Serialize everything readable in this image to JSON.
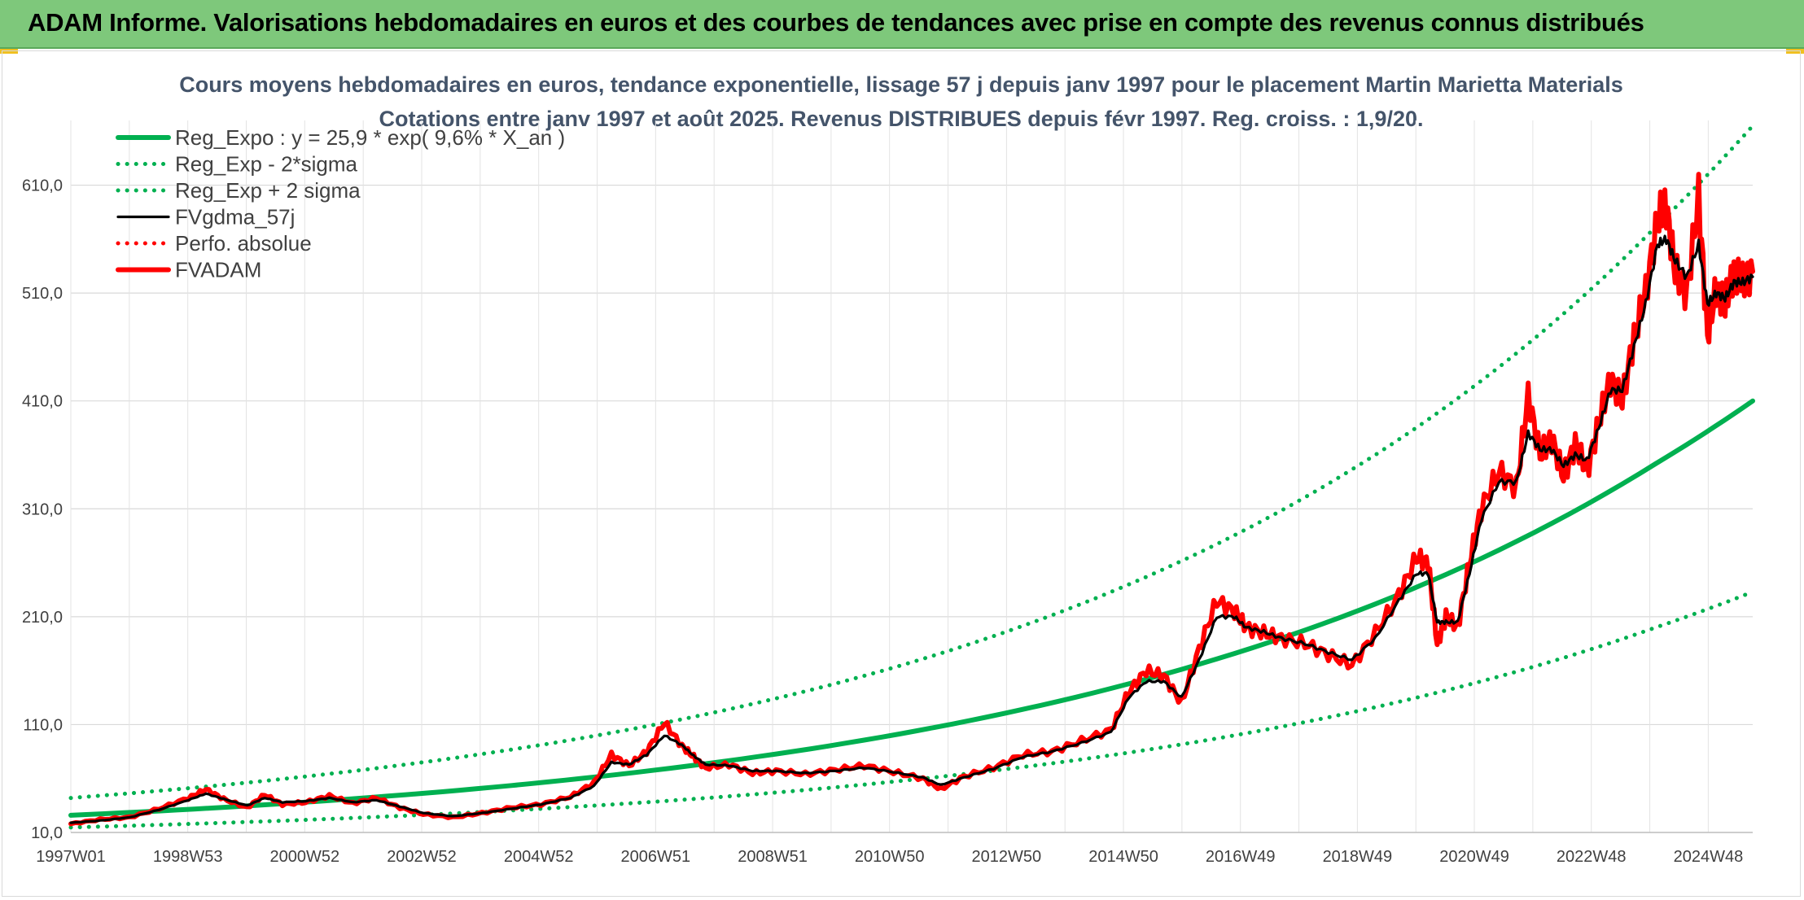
{
  "header": {
    "title": "ADAM Informe. Valorisations hebdomadaires en euros et des courbes de tendances avec prise en compte des revenus connus distribués"
  },
  "colors": {
    "header_bg": "#7ec87b",
    "trend_green": "#00b050",
    "smooth_black": "#000000",
    "price_red": "#ff0000",
    "title_text": "#44546a"
  },
  "chart_data": {
    "type": "line",
    "title": "Cours moyens hebdomadaires en euros, tendance exponentielle, lissage 57 j depuis janv 1997 pour le placement Martin Marietta Materials",
    "subtitle": "Cotations entre janv 1997 et août 2025. Revenus DISTRIBUES depuis févr 1997. Reg. croiss. : 1,9/20.",
    "x_tick_labels": [
      "1997W01",
      "1998W53",
      "2000W52",
      "2002W52",
      "2004W52",
      "2006W51",
      "2008W51",
      "2010W50",
      "2012W50",
      "2014W50",
      "2016W49",
      "2018W49",
      "2020W49",
      "2022W48",
      "2024W48"
    ],
    "x_range": [
      1997.0,
      2025.62
    ],
    "y_tick_labels": [
      "10,0",
      "110,0",
      "210,0",
      "310,0",
      "410,0",
      "510,0",
      "610,0"
    ],
    "ylim": [
      10,
      670
    ],
    "grid": true,
    "legend_position": "top-left",
    "legend": [
      {
        "label": "Reg_Expo : y = 25,9 * exp( 9,6% *  X_an )",
        "color": "#00b050",
        "style": "solid-thick"
      },
      {
        "label": "Reg_Exp - 2*sigma",
        "color": "#00b050",
        "style": "dotted"
      },
      {
        "label": "Reg_Exp + 2 sigma",
        "color": "#00b050",
        "style": "dotted"
      },
      {
        "label": "FVgdma_57j",
        "color": "#000000",
        "style": "solid"
      },
      {
        "label": "Perfo. absolue",
        "color": "#ff0000",
        "style": "dotted"
      },
      {
        "label": "FVADAM",
        "color": "#ff0000",
        "style": "solid-thick"
      }
    ],
    "series": [
      {
        "name": "Reg_Expo : y = 25,9 * exp( 9,6% *  X_an )",
        "x": [
          1997.0,
          2000.0,
          2003.0,
          2006.0,
          2009.0,
          2012.0,
          2015.0,
          2018.0,
          2021.0,
          2024.0,
          2025.62
        ],
        "values": [
          25.9,
          34.6,
          46.3,
          61.9,
          82.7,
          110.5,
          147.7,
          197.5,
          264.0,
          352.9,
          410.0
        ]
      },
      {
        "name": "Reg_Exp - 2*sigma",
        "x": [
          1997.0,
          2000.0,
          2003.0,
          2006.0,
          2009.0,
          2012.0,
          2015.0,
          2018.0,
          2021.0,
          2024.0,
          2025.62
        ],
        "values": [
          14.7,
          19.7,
          26.3,
          35.2,
          47.0,
          62.9,
          84.0,
          112.3,
          150.1,
          200.6,
          233.0
        ]
      },
      {
        "name": "Reg_Exp + 2 sigma",
        "x": [
          1997.0,
          2000.0,
          2003.0,
          2006.0,
          2009.0,
          2012.0,
          2015.0,
          2018.0,
          2021.0,
          2024.0,
          2025.62
        ],
        "values": [
          42.0,
          56.2,
          75.1,
          100.4,
          134.2,
          179.4,
          239.8,
          320.6,
          428.6,
          573.0,
          665.0
        ]
      },
      {
        "name": "FVADAM",
        "x": [
          1997.0,
          1997.5,
          1998.0,
          1998.5,
          1999.0,
          1999.3,
          1999.6,
          2000.0,
          2000.3,
          2000.6,
          2001.0,
          2001.4,
          2001.8,
          2002.2,
          2002.6,
          2003.0,
          2003.5,
          2004.0,
          2004.5,
          2005.0,
          2005.5,
          2005.9,
          2006.2,
          2006.5,
          2006.8,
          2007.1,
          2007.4,
          2007.6,
          2007.8,
          2008.2,
          2008.6,
          2009.0,
          2009.5,
          2010.0,
          2010.5,
          2011.0,
          2011.5,
          2011.8,
          2012.2,
          2012.7,
          2013.2,
          2013.7,
          2014.2,
          2014.7,
          2015.0,
          2015.3,
          2015.6,
          2015.9,
          2016.2,
          2016.5,
          2016.8,
          2017.0,
          2017.3,
          2017.6,
          2018.0,
          2018.4,
          2018.8,
          2019.2,
          2019.6,
          2019.9,
          2020.1,
          2020.25,
          2020.4,
          2020.6,
          2020.8,
          2021.0,
          2021.3,
          2021.6,
          2021.8,
          2022.0,
          2022.2,
          2022.4,
          2022.6,
          2022.8,
          2023.0,
          2023.2,
          2023.4,
          2023.6,
          2023.8,
          2024.0,
          2024.15,
          2024.3,
          2024.5,
          2024.7,
          2024.85,
          2025.0,
          2025.15,
          2025.3,
          2025.45,
          2025.62
        ],
        "values": [
          18,
          22,
          24,
          32,
          42,
          50,
          41,
          33,
          45,
          36,
          38,
          44,
          37,
          42,
          33,
          27,
          24,
          28,
          33,
          36,
          43,
          56,
          82,
          72,
          85,
          112,
          90,
          80,
          70,
          73,
          65,
          67,
          64,
          68,
          72,
          66,
          60,
          50,
          62,
          70,
          82,
          85,
          95,
          105,
          140,
          160,
          155,
          130,
          180,
          225,
          215,
          200,
          195,
          190,
          185,
          175,
          165,
          195,
          230,
          265,
          260,
          185,
          210,
          200,
          260,
          310,
          345,
          330,
          415,
          360,
          375,
          340,
          370,
          345,
          390,
          430,
          410,
          470,
          510,
          580,
          590,
          530,
          510,
          600,
          470,
          515,
          500,
          530,
          520,
          530
        ]
      },
      {
        "name": "FVgdma_57j",
        "x": [
          1997.0,
          1997.5,
          1998.0,
          1998.5,
          1999.0,
          1999.3,
          1999.6,
          2000.0,
          2000.3,
          2000.6,
          2001.0,
          2001.4,
          2001.8,
          2002.2,
          2002.6,
          2003.0,
          2003.5,
          2004.0,
          2004.5,
          2005.0,
          2005.5,
          2005.9,
          2006.2,
          2006.5,
          2006.8,
          2007.1,
          2007.4,
          2007.6,
          2007.8,
          2008.2,
          2008.6,
          2009.0,
          2009.5,
          2010.0,
          2010.5,
          2011.0,
          2011.5,
          2011.8,
          2012.2,
          2012.7,
          2013.2,
          2013.7,
          2014.2,
          2014.7,
          2015.0,
          2015.3,
          2015.6,
          2015.9,
          2016.2,
          2016.5,
          2016.8,
          2017.0,
          2017.3,
          2017.6,
          2018.0,
          2018.4,
          2018.8,
          2019.2,
          2019.6,
          2019.9,
          2020.1,
          2020.25,
          2020.4,
          2020.6,
          2020.8,
          2021.0,
          2021.3,
          2021.6,
          2021.8,
          2022.0,
          2022.2,
          2022.4,
          2022.6,
          2022.8,
          2023.0,
          2023.2,
          2023.4,
          2023.6,
          2023.8,
          2024.0,
          2024.15,
          2024.3,
          2024.5,
          2024.7,
          2024.85,
          2025.0,
          2025.15,
          2025.3,
          2025.45,
          2025.62
        ],
        "values": [
          19,
          21,
          24,
          31,
          40,
          46,
          41,
          35,
          42,
          38,
          39,
          42,
          38,
          40,
          34,
          28,
          25,
          28,
          32,
          36,
          42,
          53,
          75,
          73,
          82,
          100,
          91,
          81,
          73,
          72,
          67,
          67,
          65,
          67,
          70,
          66,
          61,
          54,
          61,
          69,
          80,
          85,
          93,
          103,
          135,
          150,
          150,
          135,
          170,
          210,
          210,
          200,
          196,
          190,
          185,
          177,
          170,
          190,
          225,
          250,
          250,
          205,
          205,
          205,
          250,
          300,
          335,
          335,
          380,
          365,
          365,
          350,
          360,
          355,
          385,
          420,
          420,
          460,
          500,
          555,
          560,
          540,
          525,
          555,
          500,
          510,
          505,
          520,
          520,
          525
        ]
      }
    ]
  }
}
